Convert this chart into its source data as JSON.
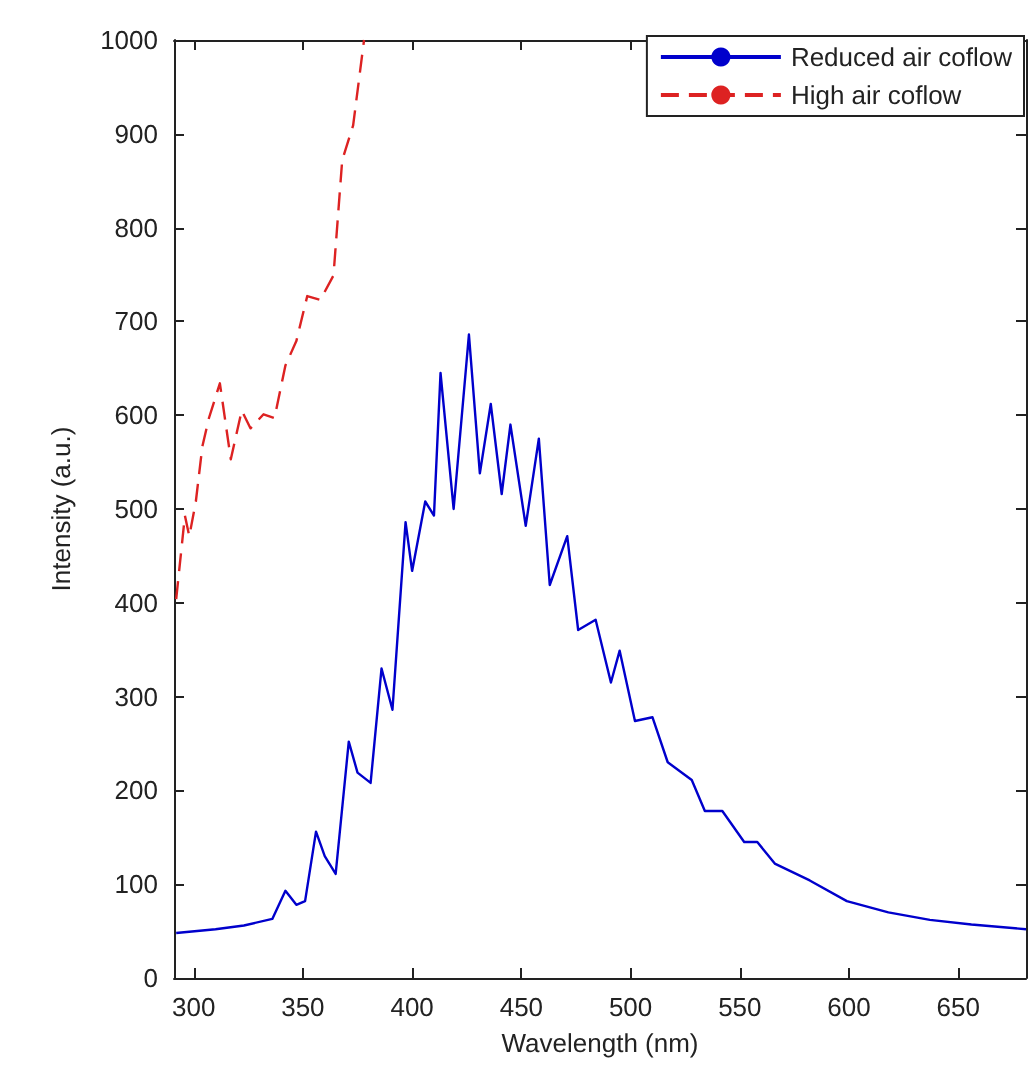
{
  "chart_data": {
    "type": "line",
    "xlabel": "Wavelength (nm)",
    "ylabel": "Intensity (a.u.)",
    "xlim": [
      291,
      681
    ],
    "xticks": [
      300,
      350,
      400,
      450,
      500,
      550,
      600,
      650
    ],
    "ylim": [
      0,
      1000
    ],
    "yticks": [
      0,
      100,
      200,
      300,
      400,
      500,
      600,
      700,
      800,
      900,
      1000
    ],
    "grid": false,
    "legend": "top right",
    "marker": "none",
    "series": [
      {
        "name": "Reduced air coflow",
        "color": "#0000cc",
        "line_style": "solid",
        "x": [
          292,
          310,
          323,
          336,
          342,
          347,
          351,
          356,
          360,
          365,
          371,
          375,
          381,
          386,
          391,
          397,
          400,
          406,
          410,
          413,
          419,
          426,
          431,
          436,
          441,
          445,
          452,
          458,
          463,
          471,
          476,
          484,
          491,
          495,
          502,
          510,
          517,
          528,
          534,
          542,
          552,
          558,
          566,
          582,
          599,
          618,
          637,
          656,
          681
        ],
        "values": [
          48,
          52,
          56,
          63,
          93,
          78,
          82,
          156,
          130,
          111,
          252,
          219,
          208,
          330,
          286,
          486,
          434,
          508,
          493,
          645,
          500,
          686,
          538,
          612,
          516,
          590,
          482,
          575,
          419,
          471,
          371,
          382,
          315,
          349,
          274,
          278,
          230,
          211,
          178,
          178,
          145,
          145,
          122,
          104,
          82,
          70,
          62,
          57,
          52
        ]
      },
      {
        "name": "High air coflow",
        "color": "#dd2222",
        "line_style": "dashed",
        "x": [
          292,
          296,
          298,
          301,
          304,
          307,
          312,
          317,
          322,
          326,
          332,
          337,
          342,
          347,
          352,
          358,
          364,
          368,
          373,
          378
        ],
        "values": [
          404,
          493,
          471,
          508,
          567,
          597,
          634,
          553,
          605,
          586,
          601,
          597,
          653,
          679,
          727,
          723,
          749,
          872,
          909,
          1000
        ]
      }
    ]
  }
}
